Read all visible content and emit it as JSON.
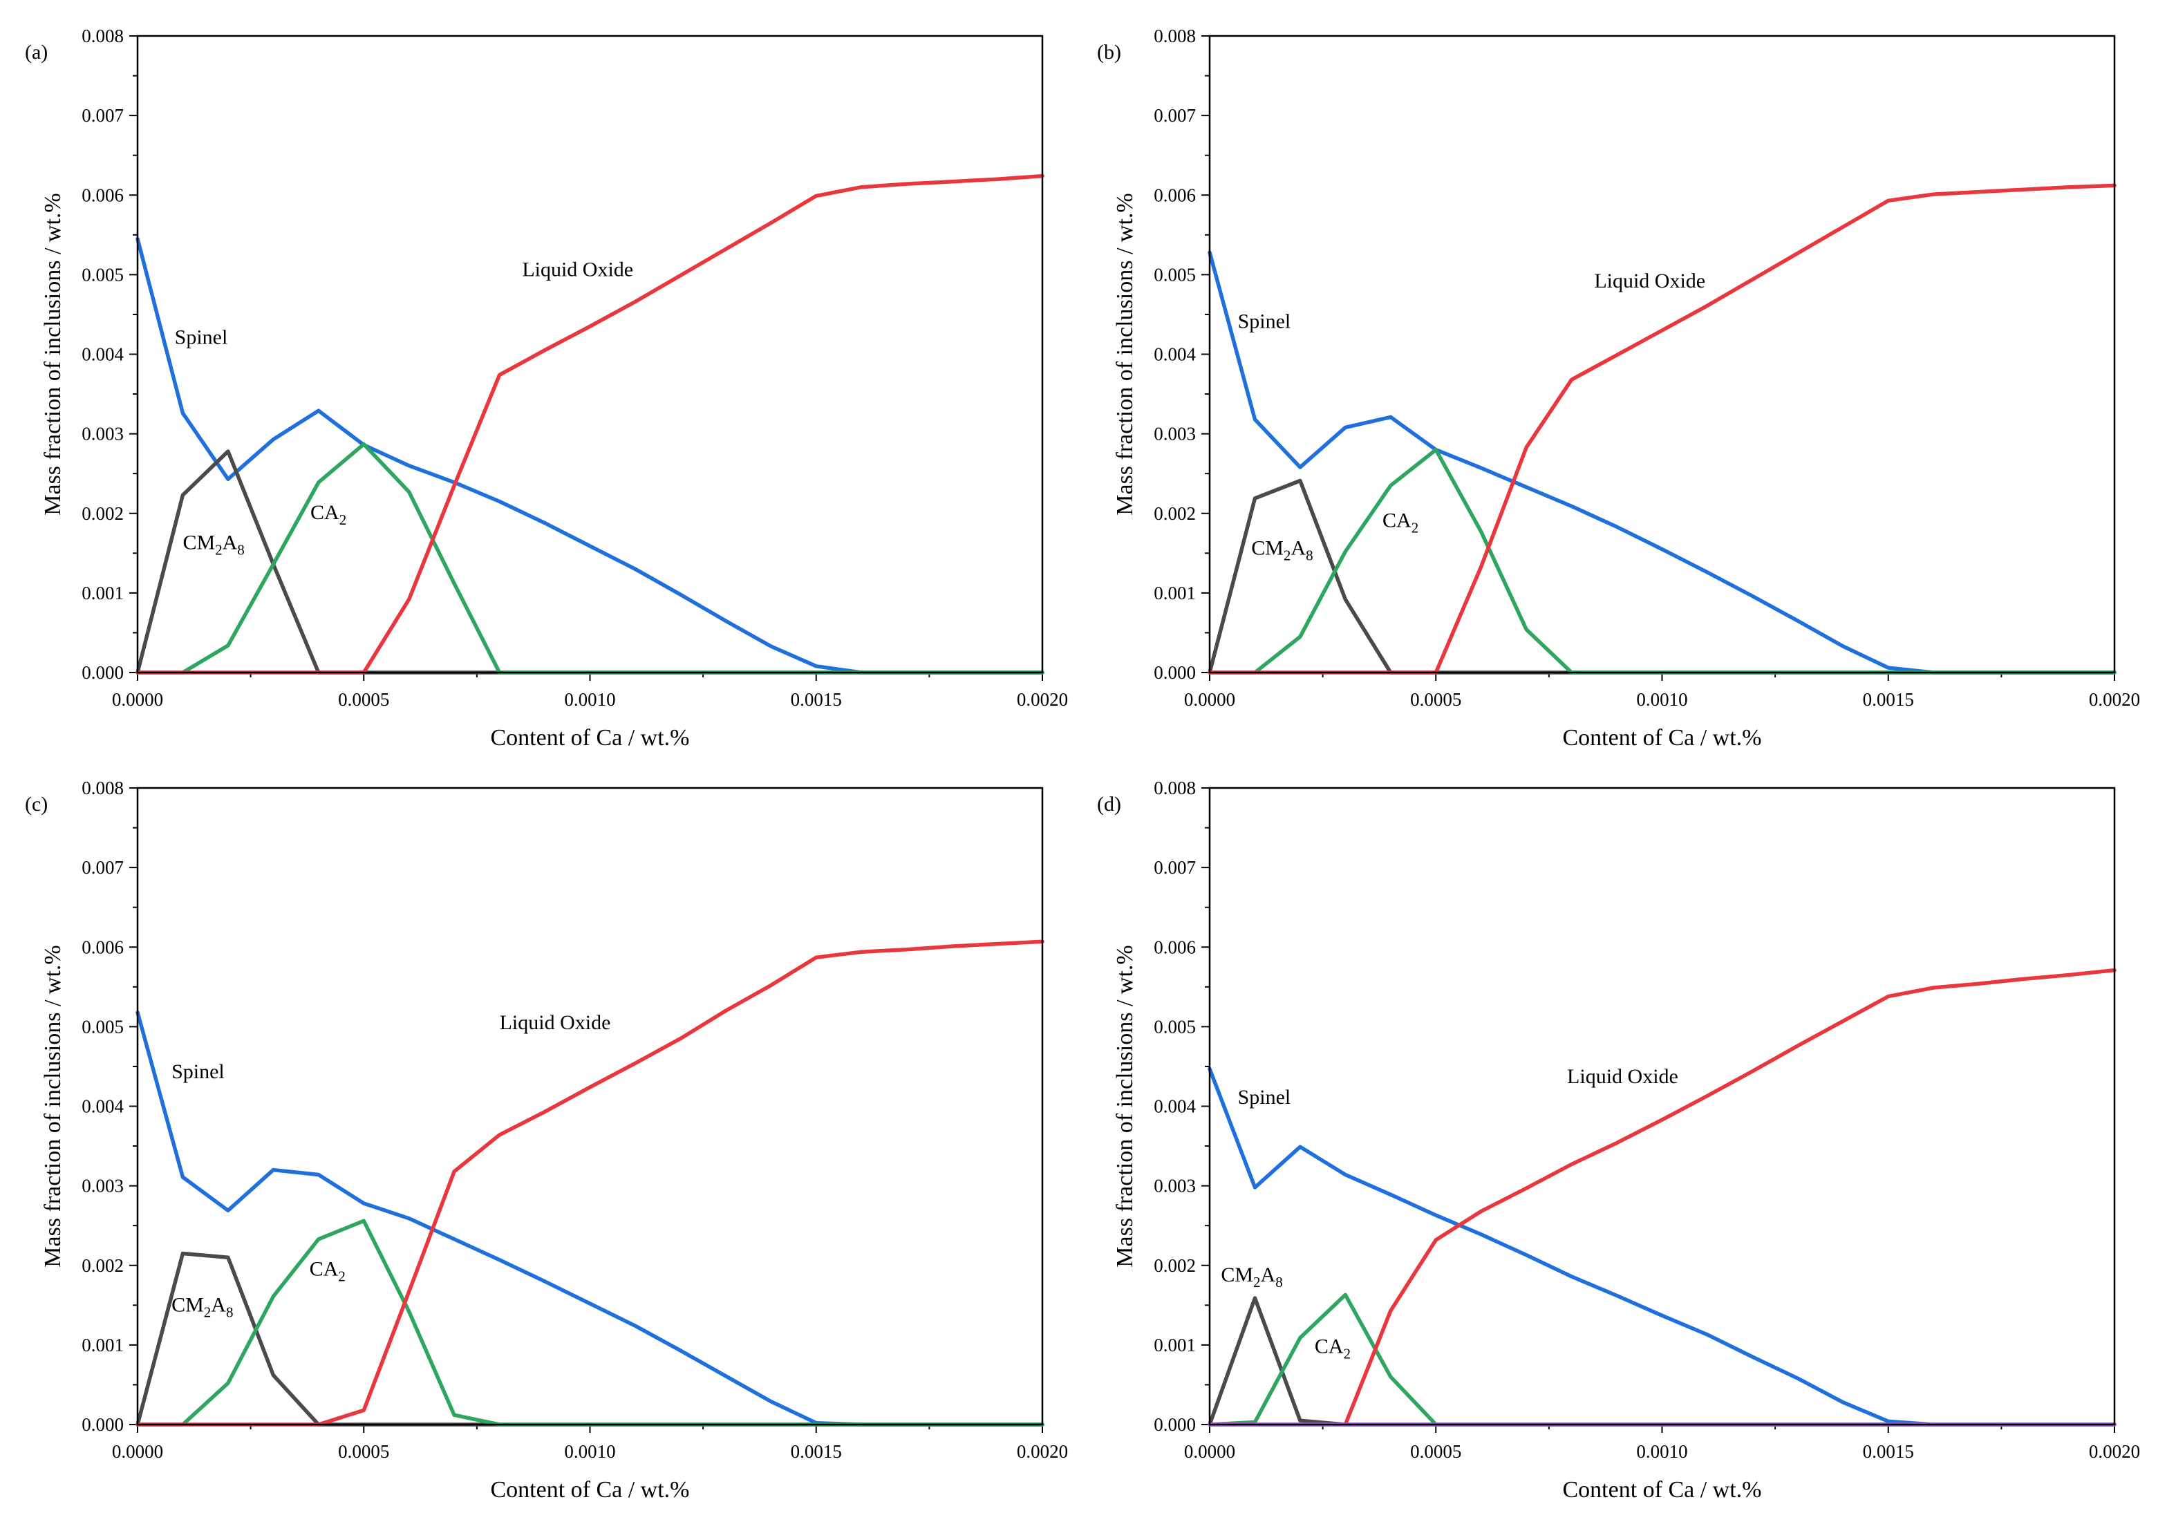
{
  "chart_data": [
    {
      "type": "line",
      "panel_label": "(a)",
      "xlabel": "Content of Ca / wt.%",
      "ylabel": "Mass fraction of inclusions / wt.%",
      "xlim": [
        0,
        0.002
      ],
      "ylim": [
        0,
        0.008
      ],
      "xticks": [
        "0.0000",
        "0.0005",
        "0.0010",
        "0.0015",
        "0.0020"
      ],
      "yticks": [
        "0.000",
        "0.001",
        "0.002",
        "0.003",
        "0.004",
        "0.005",
        "0.006",
        "0.007",
        "0.008"
      ],
      "x": [
        0,
        0.0001,
        0.0002,
        0.0003,
        0.0004,
        0.0005,
        0.0006,
        0.0007,
        0.0008,
        0.0009,
        0.001,
        0.0011,
        0.0012,
        0.0013,
        0.0014,
        0.0015,
        0.0016,
        0.0017,
        0.0018,
        0.0019,
        0.002
      ],
      "series": [
        {
          "name": "Spinel",
          "color": "#1f6fdc",
          "values": [
            0.00545,
            0.00326,
            0.00243,
            0.00293,
            0.00329,
            0.00286,
            0.0026,
            0.00239,
            0.00215,
            0.00188,
            0.00159,
            0.0013,
            0.00098,
            0.00065,
            0.00033,
            8e-05,
            0,
            0,
            0,
            0,
            0
          ]
        },
        {
          "name": "CM2A8",
          "color": "#4a4a4a",
          "values": [
            0,
            0.00223,
            0.00278,
            0.00136,
            0,
            0,
            0,
            0,
            0,
            0,
            0,
            0,
            0,
            0,
            0,
            0,
            0,
            0,
            0,
            0,
            0
          ]
        },
        {
          "name": "CA2",
          "color": "#2ea65f",
          "values": [
            0,
            0,
            0.00034,
            0.00136,
            0.00239,
            0.00287,
            0.00227,
            0.00112,
            0,
            0,
            0,
            0,
            0,
            0,
            0,
            0,
            0,
            0,
            0,
            0,
            0
          ]
        },
        {
          "name": "Liquid Oxide",
          "color": "#e8383d",
          "values": [
            0,
            0,
            0,
            0,
            0,
            0,
            0.00092,
            0.00235,
            0.00374,
            0.00405,
            0.00435,
            0.00466,
            0.00499,
            0.00532,
            0.00565,
            0.00599,
            0.0061,
            0.00614,
            0.00617,
            0.0062,
            0.00624
          ]
        }
      ],
      "annotations": [
        {
          "text": "Spinel",
          "x": 8.2e-05,
          "y": 0.00413
        },
        {
          "text": "CM2A8",
          "x": 0.0001,
          "y": 0.00155
        },
        {
          "text": "CA2",
          "x": 0.000382,
          "y": 0.00193
        },
        {
          "text": "Liquid Oxide",
          "x": 0.00085,
          "y": 0.00498
        }
      ]
    },
    {
      "type": "line",
      "panel_label": "(b)",
      "xlabel": "Content of Ca / wt.%",
      "ylabel": "Mass fraction of inclusions / wt.%",
      "xlim": [
        0,
        0.002
      ],
      "ylim": [
        0,
        0.008
      ],
      "xticks": [
        "0.0000",
        "0.0005",
        "0.0010",
        "0.0015",
        "0.0020"
      ],
      "yticks": [
        "0.000",
        "0.001",
        "0.002",
        "0.003",
        "0.004",
        "0.005",
        "0.006",
        "0.007",
        "0.008"
      ],
      "x": [
        0,
        0.0001,
        0.0002,
        0.0003,
        0.0004,
        0.0005,
        0.0006,
        0.0007,
        0.0008,
        0.0009,
        0.001,
        0.0011,
        0.0012,
        0.0013,
        0.0014,
        0.0015,
        0.0016,
        0.0017,
        0.0018,
        0.0019,
        0.002
      ],
      "series": [
        {
          "name": "Spinel",
          "color": "#1f6fdc",
          "values": [
            0.00528,
            0.00318,
            0.00258,
            0.00308,
            0.00321,
            0.0028,
            0.00257,
            0.00233,
            0.00209,
            0.00183,
            0.00155,
            0.00126,
            0.00096,
            0.00065,
            0.00033,
            6e-05,
            0,
            0,
            0,
            0,
            0
          ]
        },
        {
          "name": "CM2A8",
          "color": "#4a4a4a",
          "values": [
            0,
            0.00219,
            0.00241,
            0.00092,
            0,
            0,
            0,
            0,
            0,
            0,
            0,
            0,
            0,
            0,
            0,
            0,
            0,
            0,
            0,
            0,
            0
          ]
        },
        {
          "name": "CA2",
          "color": "#2ea65f",
          "values": [
            0,
            0,
            0.00045,
            0.00152,
            0.00235,
            0.0028,
            0.00177,
            0.00054,
            0,
            0,
            0,
            0,
            0,
            0,
            0,
            0,
            0,
            0,
            0,
            0,
            0
          ]
        },
        {
          "name": "Liquid Oxide",
          "color": "#e8383d",
          "values": [
            0,
            0,
            0,
            0,
            0,
            0,
            0.00133,
            0.00283,
            0.00368,
            0.00399,
            0.0043,
            0.00461,
            0.00494,
            0.00527,
            0.0056,
            0.00593,
            0.00601,
            0.00604,
            0.00607,
            0.0061,
            0.00612
          ]
        }
      ],
      "annotations": [
        {
          "text": "Spinel",
          "x": 6.2e-05,
          "y": 0.00433
        },
        {
          "text": "CM2A8",
          "x": 9.2e-05,
          "y": 0.00148
        },
        {
          "text": "CA2",
          "x": 0.000382,
          "y": 0.00183
        },
        {
          "text": "Liquid Oxide",
          "x": 0.00085,
          "y": 0.00484
        }
      ]
    },
    {
      "type": "line",
      "panel_label": "(c)",
      "xlabel": "Content of Ca / wt.%",
      "ylabel": "Mass fraction of inclusions / wt.%",
      "xlim": [
        0,
        0.002
      ],
      "ylim": [
        0,
        0.008
      ],
      "xticks": [
        "0.0000",
        "0.0005",
        "0.0010",
        "0.0015",
        "0.0020"
      ],
      "yticks": [
        "0.000",
        "0.001",
        "0.002",
        "0.003",
        "0.004",
        "0.005",
        "0.006",
        "0.007",
        "0.008"
      ],
      "x": [
        0,
        0.0001,
        0.0002,
        0.0003,
        0.0004,
        0.0005,
        0.0006,
        0.0007,
        0.0008,
        0.0009,
        0.001,
        0.0011,
        0.0012,
        0.0013,
        0.0014,
        0.0015,
        0.0016,
        0.0017,
        0.0018,
        0.0019,
        0.002
      ],
      "series": [
        {
          "name": "Spinel",
          "color": "#1f6fdc",
          "values": [
            0.00518,
            0.00311,
            0.00269,
            0.0032,
            0.00314,
            0.00278,
            0.00259,
            0.00233,
            0.00207,
            0.0018,
            0.00152,
            0.00124,
            0.00093,
            0.00061,
            0.00029,
            2e-05,
            0,
            0,
            0,
            0,
            0
          ]
        },
        {
          "name": "CM2A8",
          "color": "#4a4a4a",
          "values": [
            0,
            0.00215,
            0.0021,
            0.00062,
            0,
            0,
            0,
            0,
            0,
            0,
            0,
            0,
            0,
            0,
            0,
            0,
            0,
            0,
            0,
            0,
            0
          ]
        },
        {
          "name": "CA2",
          "color": "#2ea65f",
          "values": [
            0,
            0,
            0.00052,
            0.00161,
            0.00233,
            0.00256,
            0.00142,
            0.00012,
            0,
            0,
            0,
            0,
            0,
            0,
            0,
            0,
            0,
            0,
            0,
            0,
            0
          ]
        },
        {
          "name": "Liquid Oxide",
          "color": "#e8383d",
          "values": [
            0,
            0,
            0,
            0,
            0,
            0.00018,
            0.00167,
            0.00318,
            0.00364,
            0.00393,
            0.00424,
            0.00454,
            0.00485,
            0.0052,
            0.00552,
            0.00587,
            0.00594,
            0.00597,
            0.00601,
            0.00604,
            0.00607
          ]
        }
      ],
      "annotations": [
        {
          "text": "Spinel",
          "x": 7.5e-05,
          "y": 0.00435
        },
        {
          "text": "CM2A8",
          "x": 7.5e-05,
          "y": 0.00142
        },
        {
          "text": "CA2",
          "x": 0.00038,
          "y": 0.00187
        },
        {
          "text": "Liquid Oxide",
          "x": 0.0008,
          "y": 0.00497
        }
      ]
    },
    {
      "type": "line",
      "panel_label": "(d)",
      "xlabel": "Content of Ca / wt.%",
      "ylabel": "Mass fraction of inclusions / wt.%",
      "xlim": [
        0,
        0.002
      ],
      "ylim": [
        0,
        0.008
      ],
      "xticks": [
        "0.0000",
        "0.0005",
        "0.0010",
        "0.0015",
        "0.0020"
      ],
      "yticks": [
        "0.000",
        "0.001",
        "0.002",
        "0.003",
        "0.004",
        "0.005",
        "0.006",
        "0.007",
        "0.008"
      ],
      "x": [
        0,
        0.0001,
        0.0002,
        0.0003,
        0.0004,
        0.0005,
        0.0006,
        0.0007,
        0.0008,
        0.0009,
        0.001,
        0.0011,
        0.0012,
        0.0013,
        0.0014,
        0.0015,
        0.0016,
        0.0017,
        0.0018,
        0.0019,
        0.002
      ],
      "series": [
        {
          "name": "Spinel",
          "color": "#1f6fdc",
          "values": [
            0.00447,
            0.00298,
            0.00349,
            0.00314,
            0.00289,
            0.00263,
            0.00239,
            0.00213,
            0.00186,
            0.00162,
            0.00137,
            0.00113,
            0.00085,
            0.00058,
            0.00028,
            4e-05,
            0,
            0,
            0,
            0,
            0
          ]
        },
        {
          "name": "CM2A8",
          "color": "#4a4a4a",
          "values": [
            0,
            0.00159,
            5e-05,
            0,
            0,
            0,
            0,
            0,
            0,
            0,
            0,
            0,
            0,
            0,
            0,
            0,
            0,
            0,
            0,
            0,
            0
          ]
        },
        {
          "name": "CA2",
          "color": "#2ea65f",
          "values": [
            0,
            3e-05,
            0.00109,
            0.00163,
            0.0006,
            0,
            0,
            0,
            0,
            0,
            0,
            0,
            0,
            0,
            0,
            0,
            0,
            0,
            0,
            0,
            0
          ]
        },
        {
          "name": "Liquid Oxide",
          "color": "#e8383d",
          "values": [
            0,
            0,
            0,
            0,
            0.00143,
            0.00232,
            0.00268,
            0.00297,
            0.00327,
            0.00354,
            0.00383,
            0.00413,
            0.00444,
            0.00476,
            0.00507,
            0.00538,
            0.00549,
            0.00554,
            0.0056,
            0.00565,
            0.00571
          ]
        },
        {
          "name": "",
          "color": "#a05ad8",
          "values": [
            0,
            0,
            0,
            0,
            0,
            0,
            0,
            0,
            0,
            0,
            0,
            0,
            0,
            0,
            0,
            0,
            0,
            0,
            0,
            0,
            0
          ]
        }
      ],
      "annotations": [
        {
          "text": "Spinel",
          "x": 6.2e-05,
          "y": 0.00403
        },
        {
          "text": "CM2A8",
          "x": 2.5e-05,
          "y": 0.0018
        },
        {
          "text": "CA2",
          "x": 0.000232,
          "y": 0.0009
        },
        {
          "text": "Liquid Oxide",
          "x": 0.00079,
          "y": 0.00429
        }
      ]
    }
  ]
}
